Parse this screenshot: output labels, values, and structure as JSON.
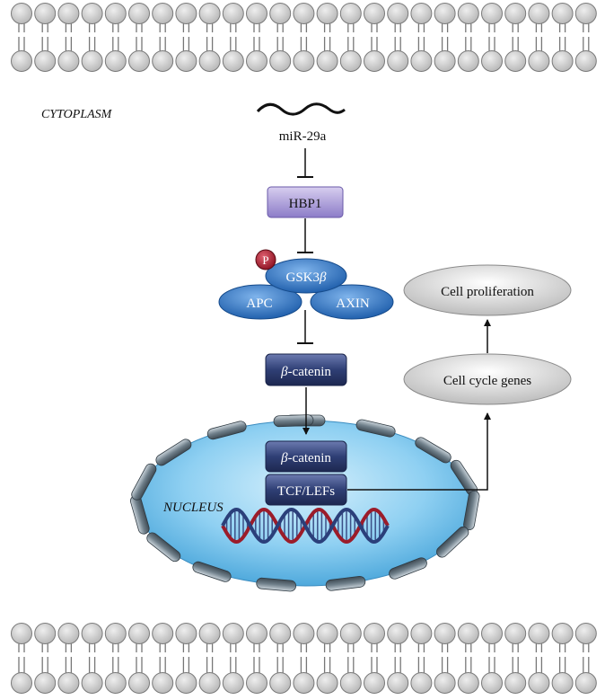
{
  "labels": {
    "cytoplasm": "CYTOPLASM",
    "mirna": "miR-29a",
    "hbp1": "HBP1",
    "phospho": "P",
    "gsk3b_prefix": "GSK3",
    "gsk3b_symbol": "β",
    "apc": "APC",
    "axin": "AXIN",
    "beta_symbol": "β",
    "beta_catenin_suffix": "-catenin",
    "tcf_lefs": "TCF/LEFs",
    "nucleus": "NUCLEUS",
    "cell_cycle_genes": "Cell cycle genes",
    "cell_proliferation": "Cell proliferation"
  },
  "colors": {
    "membrane_head": "#c9c9c9",
    "membrane_stroke": "#7a7a7a",
    "hbp1_fill": "#a99bd8",
    "phospho_fill": "#a0192f",
    "complex_blue": "#1f66b8",
    "beta_catenin_navy": "#2b3a6e",
    "nucleus_blue": "#8fd0f2",
    "pore_gray": "#6f7f8a",
    "dna_red": "#9b1c2a",
    "dna_blue": "#2b3f7a",
    "output_gray": "#cfcfcf"
  }
}
